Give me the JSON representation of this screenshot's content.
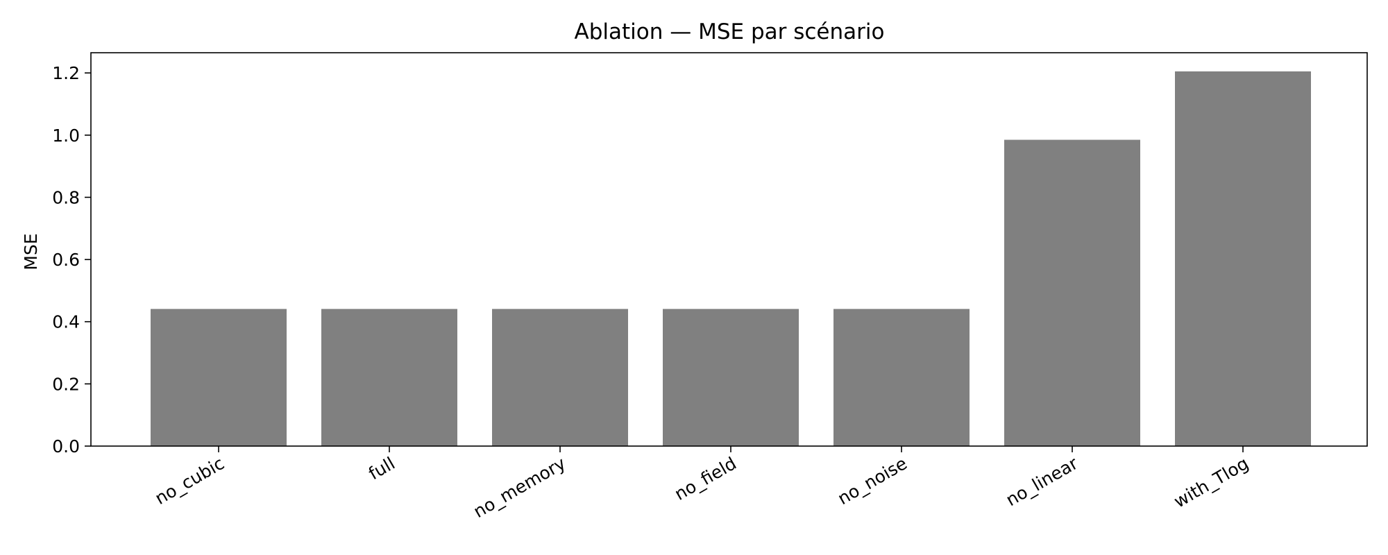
{
  "chart_data": {
    "type": "bar",
    "title": "Ablation — MSE par scénario",
    "xlabel": "",
    "ylabel": "MSE",
    "categories": [
      "no_cubic",
      "full",
      "no_memory",
      "no_field",
      "no_noise",
      "no_linear",
      "with_Tlog"
    ],
    "values": [
      0.441,
      0.441,
      0.441,
      0.441,
      0.441,
      0.985,
      1.205
    ],
    "ylim": [
      0,
      1.265
    ],
    "yticks": [
      0.0,
      0.2,
      0.4,
      0.6,
      0.8,
      1.0,
      1.2
    ],
    "ytick_labels": [
      "0.0",
      "0.2",
      "0.4",
      "0.6",
      "0.8",
      "1.0",
      "1.2"
    ],
    "grid": false,
    "bar_color": "#808080"
  }
}
